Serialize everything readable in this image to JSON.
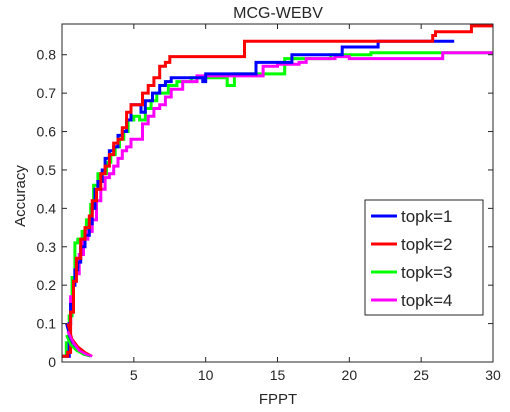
{
  "chart_data": {
    "type": "line",
    "title": "MCG-WEBV",
    "xlabel": "FPPT",
    "ylabel": "Accuracy",
    "xlim": [
      0,
      30
    ],
    "ylim": [
      0,
      0.88
    ],
    "xticks": [
      5,
      10,
      15,
      20,
      25,
      30
    ],
    "xtick_labels": [
      "5",
      "10",
      "15",
      "20",
      "25",
      "30"
    ],
    "yticks": [
      0,
      0.1,
      0.2,
      0.3,
      0.4,
      0.5,
      0.6,
      0.7,
      0.8
    ],
    "ytick_labels": [
      "0",
      "0.1",
      "0.2",
      "0.3",
      "0.4",
      "0.5",
      "0.6",
      "0.7",
      "0.8"
    ],
    "grid": false,
    "legend_position": "bottom-right",
    "series": [
      {
        "name": "topk=1",
        "color": "#0000ff",
        "points": [
          [
            0,
            0.015
          ],
          [
            0.4,
            0.015
          ],
          [
            0.5,
            0.1
          ],
          [
            0.6,
            0.15
          ],
          [
            0.7,
            0.14
          ],
          [
            0.8,
            0.2
          ],
          [
            0.9,
            0.24
          ],
          [
            1.1,
            0.26
          ],
          [
            1.3,
            0.3
          ],
          [
            1.6,
            0.33
          ],
          [
            1.9,
            0.36
          ],
          [
            2.1,
            0.4
          ],
          [
            2.3,
            0.45
          ],
          [
            2.5,
            0.47
          ],
          [
            2.8,
            0.5
          ],
          [
            3.0,
            0.53
          ],
          [
            3.3,
            0.55
          ],
          [
            3.6,
            0.56
          ],
          [
            3.9,
            0.59
          ],
          [
            4.2,
            0.6
          ],
          [
            4.5,
            0.63
          ],
          [
            4.8,
            0.67
          ],
          [
            5.3,
            0.67
          ],
          [
            5.5,
            0.65
          ],
          [
            5.8,
            0.68
          ],
          [
            6.3,
            0.7
          ],
          [
            6.8,
            0.72
          ],
          [
            7.2,
            0.73
          ],
          [
            7.6,
            0.74
          ],
          [
            9.0,
            0.74
          ],
          [
            9.8,
            0.73
          ],
          [
            10.0,
            0.75
          ],
          [
            13.0,
            0.75
          ],
          [
            13.5,
            0.78
          ],
          [
            15.0,
            0.78
          ],
          [
            16.0,
            0.8
          ],
          [
            19.0,
            0.8
          ],
          [
            19.5,
            0.82
          ],
          [
            21.5,
            0.82
          ],
          [
            22.0,
            0.835
          ],
          [
            25.5,
            0.835
          ],
          [
            26.0,
            0.835
          ],
          [
            27.3,
            0.835
          ]
        ]
      },
      {
        "name": "topk=2",
        "color": "#ff0000",
        "points": [
          [
            0,
            0.015
          ],
          [
            0.4,
            0.025
          ],
          [
            0.6,
            0.13
          ],
          [
            0.8,
            0.21
          ],
          [
            1.0,
            0.27
          ],
          [
            1.3,
            0.32
          ],
          [
            1.6,
            0.35
          ],
          [
            1.9,
            0.38
          ],
          [
            2.1,
            0.42
          ],
          [
            2.4,
            0.45
          ],
          [
            2.7,
            0.49
          ],
          [
            3.0,
            0.51
          ],
          [
            3.3,
            0.54
          ],
          [
            3.6,
            0.57
          ],
          [
            3.9,
            0.58
          ],
          [
            4.2,
            0.61
          ],
          [
            4.5,
            0.65
          ],
          [
            4.8,
            0.67
          ],
          [
            5.2,
            0.67
          ],
          [
            5.6,
            0.7
          ],
          [
            6.0,
            0.72
          ],
          [
            6.4,
            0.74
          ],
          [
            6.8,
            0.77
          ],
          [
            7.2,
            0.78
          ],
          [
            7.5,
            0.795
          ],
          [
            12.5,
            0.795
          ],
          [
            12.7,
            0.835
          ],
          [
            25.5,
            0.835
          ],
          [
            25.8,
            0.85
          ],
          [
            26.0,
            0.86
          ],
          [
            28.0,
            0.86
          ],
          [
            28.5,
            0.875
          ],
          [
            30.0,
            0.875
          ]
        ]
      },
      {
        "name": "topk=3",
        "color": "#00ff00",
        "points": [
          [
            0,
            0.015
          ],
          [
            0.3,
            0.05
          ],
          [
            0.5,
            0.12
          ],
          [
            0.7,
            0.22
          ],
          [
            0.9,
            0.31
          ],
          [
            1.1,
            0.32
          ],
          [
            1.4,
            0.34
          ],
          [
            1.7,
            0.37
          ],
          [
            2.0,
            0.41
          ],
          [
            2.2,
            0.46
          ],
          [
            2.5,
            0.49
          ],
          [
            2.8,
            0.49
          ],
          [
            3.1,
            0.52
          ],
          [
            3.4,
            0.54
          ],
          [
            3.7,
            0.56
          ],
          [
            4.0,
            0.58
          ],
          [
            4.3,
            0.6
          ],
          [
            4.6,
            0.63
          ],
          [
            5.0,
            0.64
          ],
          [
            5.4,
            0.63
          ],
          [
            5.8,
            0.66
          ],
          [
            6.2,
            0.68
          ],
          [
            6.6,
            0.7
          ],
          [
            7.0,
            0.7
          ],
          [
            7.4,
            0.72
          ],
          [
            8.0,
            0.73
          ],
          [
            9.0,
            0.74
          ],
          [
            11.0,
            0.74
          ],
          [
            11.5,
            0.72
          ],
          [
            12.0,
            0.75
          ],
          [
            14.5,
            0.75
          ],
          [
            15.5,
            0.79
          ],
          [
            18.5,
            0.79
          ],
          [
            18.7,
            0.8
          ],
          [
            21.0,
            0.8
          ],
          [
            21.5,
            0.805
          ],
          [
            30.0,
            0.805
          ]
        ]
      },
      {
        "name": "topk=4",
        "color": "#ff00ff",
        "points": [
          [
            0.3,
            0.015
          ],
          [
            0.5,
            0.1
          ],
          [
            0.6,
            0.17
          ],
          [
            0.8,
            0.21
          ],
          [
            1.0,
            0.23
          ],
          [
            1.2,
            0.28
          ],
          [
            1.5,
            0.32
          ],
          [
            1.8,
            0.34
          ],
          [
            2.1,
            0.37
          ],
          [
            2.4,
            0.42
          ],
          [
            2.7,
            0.45
          ],
          [
            3.0,
            0.48
          ],
          [
            3.3,
            0.49
          ],
          [
            3.6,
            0.51
          ],
          [
            3.9,
            0.53
          ],
          [
            4.2,
            0.55
          ],
          [
            4.5,
            0.56
          ],
          [
            4.8,
            0.58
          ],
          [
            5.2,
            0.58
          ],
          [
            5.6,
            0.62
          ],
          [
            6.0,
            0.64
          ],
          [
            6.4,
            0.66
          ],
          [
            6.8,
            0.67
          ],
          [
            7.2,
            0.69
          ],
          [
            7.6,
            0.71
          ],
          [
            8.0,
            0.71
          ],
          [
            8.4,
            0.73
          ],
          [
            9.0,
            0.73
          ],
          [
            9.4,
            0.745
          ],
          [
            11.0,
            0.745
          ],
          [
            11.5,
            0.745
          ],
          [
            13.0,
            0.745
          ],
          [
            14.0,
            0.77
          ],
          [
            15.0,
            0.775
          ],
          [
            16.5,
            0.78
          ],
          [
            17.0,
            0.79
          ],
          [
            19.0,
            0.795
          ],
          [
            20.0,
            0.79
          ],
          [
            26.0,
            0.79
          ],
          [
            26.5,
            0.805
          ],
          [
            30.0,
            0.805
          ]
        ]
      }
    ],
    "low_segments": [
      {
        "series": "topk=1",
        "color": "#0000ff",
        "points": [
          [
            0.3,
            0.1
          ],
          [
            0.6,
            0.06
          ],
          [
            1.0,
            0.035
          ],
          [
            1.5,
            0.02
          ],
          [
            2.0,
            0.015
          ]
        ]
      },
      {
        "series": "topk=2",
        "color": "#ff0000",
        "points": [
          [
            0.4,
            0.1
          ],
          [
            0.7,
            0.06
          ],
          [
            1.1,
            0.04
          ],
          [
            1.6,
            0.025
          ],
          [
            2.1,
            0.015
          ]
        ]
      },
      {
        "series": "topk=3",
        "color": "#00ff00",
        "points": [
          [
            0.3,
            0.07
          ],
          [
            0.6,
            0.045
          ],
          [
            1.0,
            0.03
          ],
          [
            1.5,
            0.02
          ],
          [
            2.0,
            0.015
          ]
        ]
      },
      {
        "series": "topk=4",
        "color": "#ff00ff",
        "points": [
          [
            0.4,
            0.08
          ],
          [
            0.8,
            0.05
          ],
          [
            1.2,
            0.03
          ],
          [
            1.7,
            0.02
          ],
          [
            2.1,
            0.015
          ]
        ]
      }
    ]
  }
}
